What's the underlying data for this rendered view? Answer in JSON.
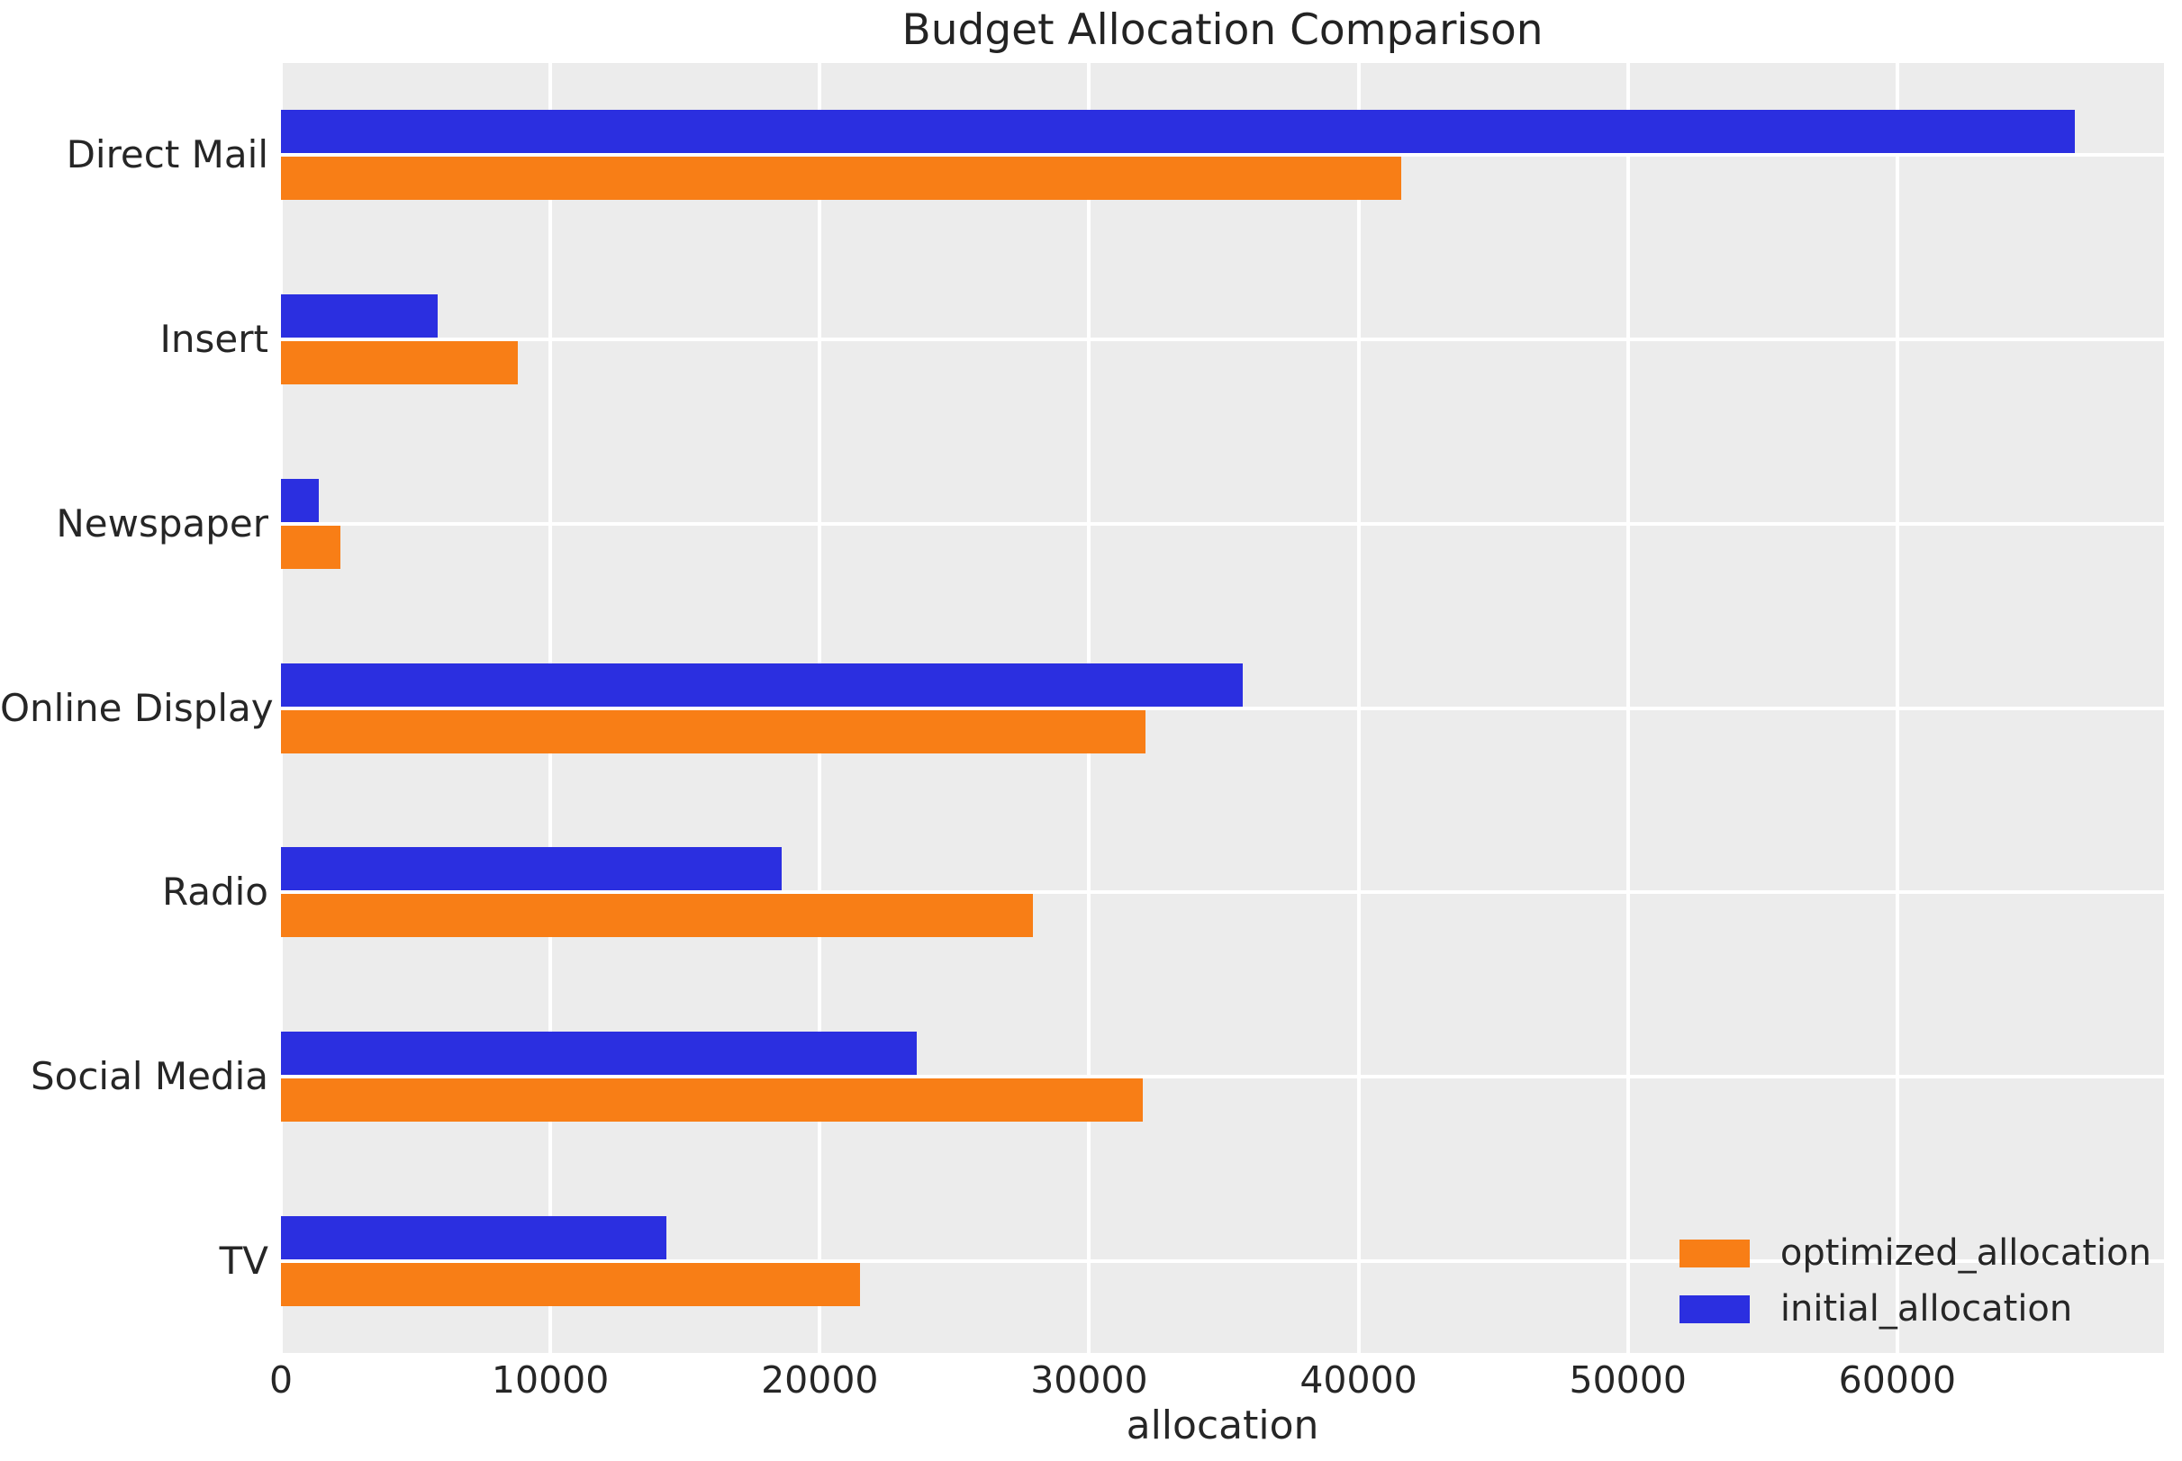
{
  "title": "Budget Allocation Comparison",
  "style": {
    "plot_background": "#ececec",
    "grid_color": "#ffffff",
    "text_color": "#262626",
    "optimized_color": "#f87e16",
    "initial_color": "#2b2fe0"
  },
  "chart_data": {
    "type": "bar",
    "orientation": "horizontal",
    "title": "Budget Allocation Comparison",
    "xlabel": "allocation",
    "ylabel": "",
    "categories": [
      "Direct Mail",
      "Insert",
      "Newspaper",
      "Online Display",
      "Radio",
      "Social Media",
      "TV"
    ],
    "series": [
      {
        "name": "optimized_allocation",
        "color": "#f87e16",
        "values": [
          41600,
          8800,
          2200,
          32100,
          27900,
          32000,
          21500
        ]
      },
      {
        "name": "initial_allocation",
        "color": "#2b2fe0",
        "values": [
          66600,
          5800,
          1400,
          35700,
          18600,
          23600,
          14300
        ]
      }
    ],
    "row_order_top_to_bottom": [
      "initial_allocation",
      "optimized_allocation"
    ],
    "xlim": [
      0,
      69900
    ],
    "xticks": [
      0,
      10000,
      20000,
      30000,
      40000,
      50000,
      60000
    ],
    "grid": true,
    "legend_position": "lower right",
    "legend_entries": [
      "optimized_allocation",
      "initial_allocation"
    ]
  }
}
